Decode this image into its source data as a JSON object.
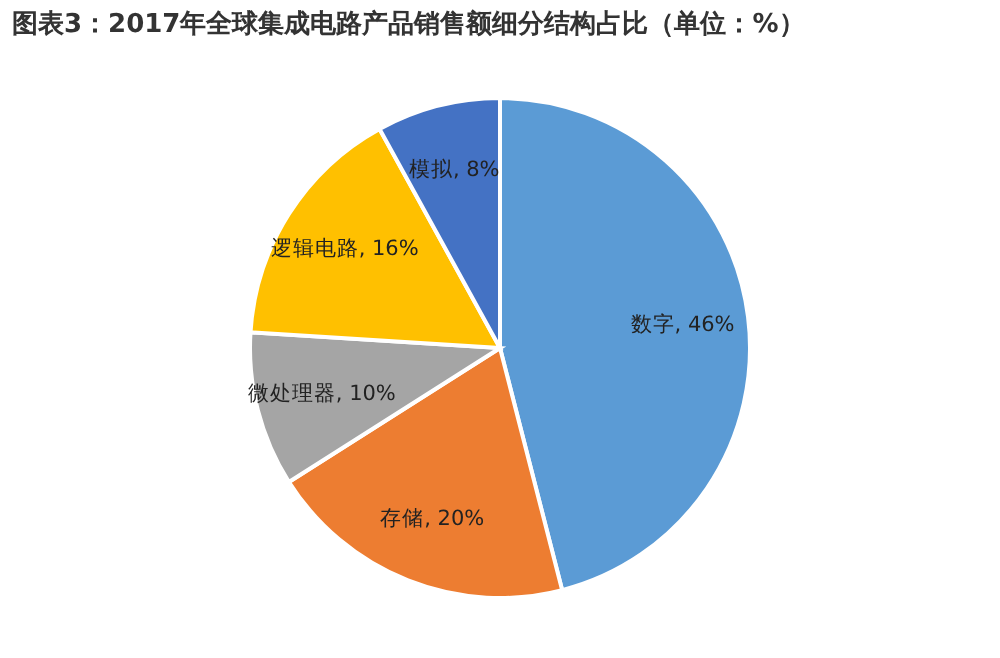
{
  "chart_data": {
    "type": "pie",
    "title": "图表3：2017年全球集成电路产品销售额细分结构占比（单位：%）",
    "categories": [
      "数字",
      "存储",
      "微处理器",
      "逻辑电路",
      "模拟"
    ],
    "values": [
      46,
      20,
      10,
      16,
      8
    ],
    "colors": [
      "#5b9bd5",
      "#ed7d31",
      "#a5a5a5",
      "#ffc000",
      "#4472c4"
    ],
    "value_labels": [
      "46%",
      "20%",
      "10%",
      "16%",
      "8%"
    ],
    "legend": false
  }
}
